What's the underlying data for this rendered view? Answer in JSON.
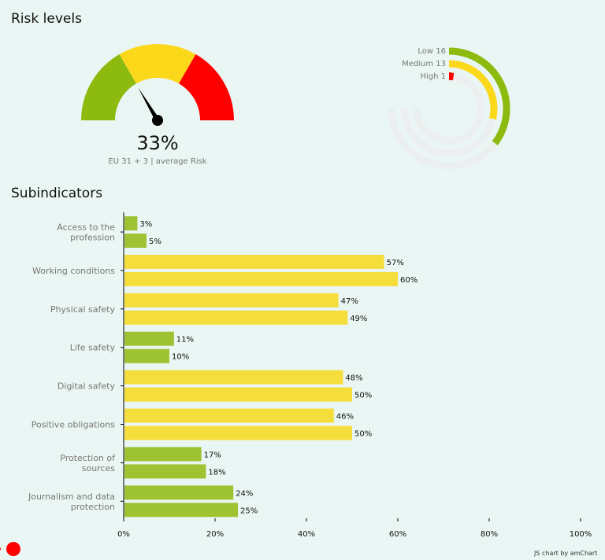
{
  "risk_levels": {
    "title": "Risk levels",
    "gauge": {
      "value_label": "33%",
      "value": 33,
      "caption": "EU 31 + 3 | average Risk",
      "band_colors": [
        "#8cba0f",
        "#fcd81b",
        "#ff0000"
      ]
    },
    "radial": {
      "items": [
        {
          "label": "Low 16",
          "value": 16,
          "color": "#8cba0f"
        },
        {
          "label": "Medium 13",
          "value": 13,
          "color": "#fcd81b"
        },
        {
          "label": "High 1",
          "value": 1,
          "color": "#ff0000"
        }
      ],
      "total": 34
    }
  },
  "subindicators": {
    "title": "Subindicators"
  },
  "chart_data": {
    "type": "bar",
    "orientation": "horizontal",
    "categories": [
      "Access to the profession",
      "Working conditions",
      "Physical safety",
      "Life safety",
      "Digital safety",
      "Positive obligations",
      "Protection of sources",
      "Journalism and data protection"
    ],
    "series": [
      {
        "values": [
          3,
          57,
          47,
          11,
          48,
          46,
          17,
          24
        ]
      },
      {
        "values": [
          5,
          60,
          49,
          10,
          50,
          50,
          18,
          25
        ]
      }
    ],
    "value_unit": "%",
    "xlim": [
      0,
      100
    ],
    "x_ticks": [
      "0%",
      "20%",
      "40%",
      "60%",
      "80%",
      "100%"
    ],
    "colors": {
      "low": "#9dc232",
      "medium": "#f5dd3c"
    }
  },
  "footer": {
    "credit": "JS chart by amCharts"
  }
}
